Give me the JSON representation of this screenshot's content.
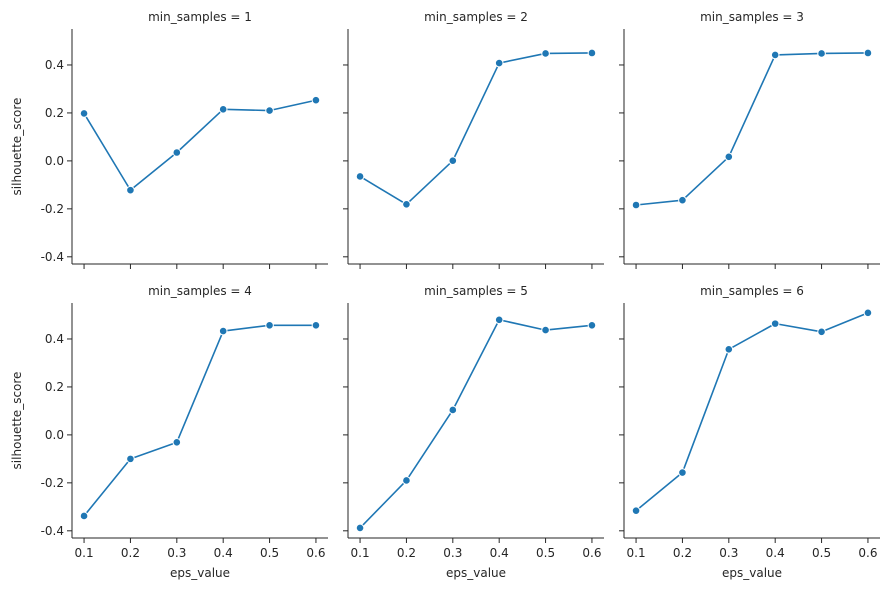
{
  "chart_data": {
    "type": "line",
    "layout": "facet-grid",
    "xlabel": "eps_value",
    "ylabel": "silhouette_score",
    "x": [
      0.1,
      0.2,
      0.3,
      0.4,
      0.5,
      0.6
    ],
    "xticks": [
      "0.1",
      "0.2",
      "0.3",
      "0.4",
      "0.5",
      "0.6"
    ],
    "ylim": [
      -0.43,
      0.55
    ],
    "yticks": [
      "-0.4",
      "-0.2",
      "0.0",
      "0.2",
      "0.4"
    ],
    "line_color": "#1f77b4",
    "marker": "circle",
    "grid": false,
    "panels": [
      {
        "title": "min_samples = 1",
        "values": [
          0.198,
          -0.122,
          0.035,
          0.215,
          0.21,
          0.253
        ]
      },
      {
        "title": "min_samples = 2",
        "values": [
          -0.065,
          -0.181,
          0.001,
          0.408,
          0.448,
          0.45
        ]
      },
      {
        "title": "min_samples = 3",
        "values": [
          -0.184,
          -0.164,
          0.017,
          0.442,
          0.448,
          0.45
        ]
      },
      {
        "title": "min_samples = 4",
        "values": [
          -0.338,
          -0.1,
          -0.031,
          0.433,
          0.457,
          0.457
        ]
      },
      {
        "title": "min_samples = 5",
        "values": [
          -0.388,
          -0.19,
          0.104,
          0.48,
          0.437,
          0.457
        ]
      },
      {
        "title": "min_samples = 6",
        "values": [
          -0.316,
          -0.157,
          0.357,
          0.464,
          0.43,
          0.509
        ]
      }
    ]
  }
}
